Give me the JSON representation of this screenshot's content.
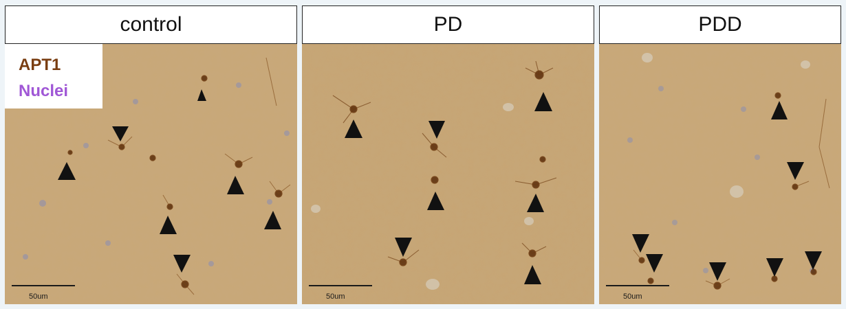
{
  "panels": [
    {
      "title": "control",
      "scale_label": "50um"
    },
    {
      "title": "PD",
      "scale_label": "50um"
    },
    {
      "title": "PDD",
      "scale_label": "50um"
    }
  ],
  "legend": {
    "stain": "APT1",
    "nuclei": "Nuclei"
  },
  "colors": {
    "tissue": "#c7a577",
    "stain": "#7a3e12",
    "nuclei": "#a057d6",
    "arrow": "#111111"
  }
}
